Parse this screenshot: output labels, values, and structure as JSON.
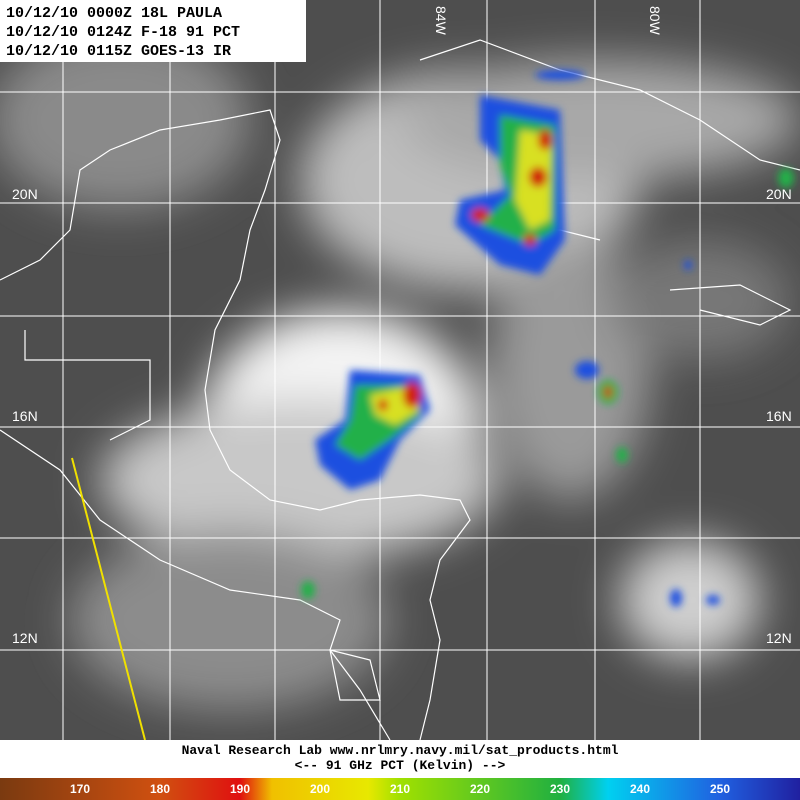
{
  "header": {
    "lines": [
      "10/12/10 0000Z 18L PAULA",
      "10/12/10 0124Z F-18 91 PCT",
      "10/12/10 0115Z GOES-13 IR"
    ]
  },
  "grid_labels": {
    "lat_left": [
      "20N",
      "16N",
      "12N"
    ],
    "lat_right": [
      "20N",
      "16N",
      "12N"
    ],
    "lon_top": [
      "84W",
      "80W"
    ]
  },
  "footer": {
    "credit": "Naval Research Lab   www.nrlmry.navy.mil/sat_products.html",
    "scale_title": "<--   91 GHz PCT (Kelvin)  -->"
  },
  "colorbar": {
    "ticks": [
      170,
      180,
      190,
      200,
      210,
      220,
      230,
      240,
      250
    ]
  }
}
